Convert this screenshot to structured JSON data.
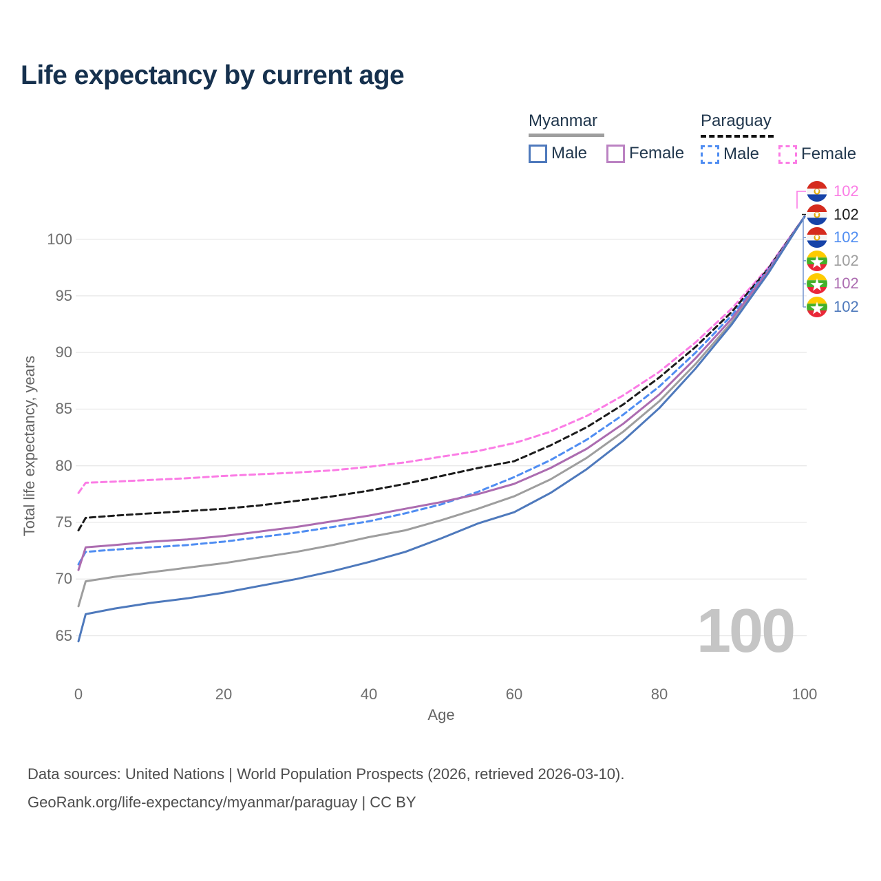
{
  "title": "Life expectancy by current age",
  "legend": {
    "myanmar": {
      "title": "Myanmar",
      "male": "Male",
      "female": "Female"
    },
    "paraguay": {
      "title": "Paraguay",
      "male": "Male",
      "female": "Female"
    }
  },
  "colors": {
    "myanmar_male": "#4e79bc",
    "myanmar_female": "#ac6cb0",
    "myanmar_total": "#9e9e9e",
    "paraguay_male": "#4f8df2",
    "paraguay_female": "#fb7ce5",
    "paraguay_total": "#1c1c1c",
    "grid": "#e9e9e9",
    "tick_text": "#6e6e6e",
    "connector_blue": "#7d9bd2",
    "watermark": "#c5c5c5",
    "title_text": "#16314e"
  },
  "watermark": "100",
  "chart_data": {
    "type": "line",
    "title": "Life expectancy by current age",
    "xlabel": "Age",
    "ylabel": "Total life expectancy, years",
    "xticks": [
      0,
      20,
      40,
      60,
      80,
      100
    ],
    "yticks": [
      65,
      70,
      75,
      80,
      85,
      90,
      95,
      100
    ],
    "xlim": [
      0,
      100
    ],
    "ylim": [
      63.5,
      104
    ],
    "grid": "horizontal",
    "legend_position": "top-right",
    "x": [
      0,
      1,
      5,
      10,
      15,
      20,
      25,
      30,
      35,
      40,
      45,
      50,
      55,
      60,
      65,
      70,
      75,
      80,
      85,
      90,
      95,
      100
    ],
    "series": [
      {
        "name": "Paraguay Female",
        "country": "Paraguay",
        "sex": "Female",
        "style": "dashed",
        "color": "#fb7ce5",
        "values": [
          77.6,
          78.5,
          78.6,
          78.75,
          78.9,
          79.1,
          79.25,
          79.4,
          79.6,
          79.9,
          80.3,
          80.8,
          81.3,
          82.0,
          83.0,
          84.4,
          86.2,
          88.3,
          90.9,
          93.9,
          97.5,
          102
        ]
      },
      {
        "name": "Paraguay Total",
        "country": "Paraguay",
        "sex": "Both",
        "style": "dashed",
        "color": "#1c1c1c",
        "values": [
          74.3,
          75.4,
          75.6,
          75.8,
          76.0,
          76.2,
          76.5,
          76.9,
          77.3,
          77.8,
          78.4,
          79.1,
          79.8,
          80.4,
          81.8,
          83.4,
          85.4,
          87.8,
          90.5,
          93.6,
          97.4,
          102
        ]
      },
      {
        "name": "Paraguay Male",
        "country": "Paraguay",
        "sex": "Male",
        "style": "dashed",
        "color": "#4f8df2",
        "values": [
          71.3,
          72.4,
          72.6,
          72.8,
          73.0,
          73.3,
          73.7,
          74.1,
          74.6,
          75.1,
          75.8,
          76.6,
          77.7,
          79.0,
          80.5,
          82.3,
          84.5,
          87.0,
          90.0,
          93.3,
          97.3,
          102
        ]
      },
      {
        "name": "Myanmar Total",
        "country": "Myanmar",
        "sex": "Both",
        "style": "solid",
        "color": "#9e9e9e",
        "values": [
          67.6,
          69.8,
          70.2,
          70.6,
          71.0,
          71.4,
          71.9,
          72.4,
          73.0,
          73.7,
          74.3,
          75.2,
          76.2,
          77.3,
          78.8,
          80.7,
          83.0,
          85.7,
          89.0,
          92.7,
          97.1,
          102
        ]
      },
      {
        "name": "Myanmar Female",
        "country": "Myanmar",
        "sex": "Female",
        "style": "solid",
        "color": "#ac6cb0",
        "values": [
          70.8,
          72.8,
          73.0,
          73.3,
          73.5,
          73.8,
          74.2,
          74.6,
          75.1,
          75.6,
          76.2,
          76.8,
          77.5,
          78.4,
          79.8,
          81.5,
          83.7,
          86.3,
          89.5,
          93.0,
          97.2,
          102
        ]
      },
      {
        "name": "Myanmar Male",
        "country": "Myanmar",
        "sex": "Male",
        "style": "solid",
        "color": "#4e79bc",
        "values": [
          64.5,
          66.9,
          67.4,
          67.9,
          68.3,
          68.8,
          69.4,
          70.0,
          70.7,
          71.5,
          72.4,
          73.6,
          74.9,
          75.9,
          77.6,
          79.7,
          82.2,
          85.1,
          88.6,
          92.5,
          97.0,
          102
        ]
      }
    ]
  },
  "end_labels": [
    {
      "value": "102",
      "country": "Paraguay",
      "series": "Paraguay Female",
      "color": "#fb7ce5"
    },
    {
      "value": "102",
      "country": "Paraguay",
      "series": "Paraguay Total",
      "color": "#1c1c1c"
    },
    {
      "value": "102",
      "country": "Paraguay",
      "series": "Paraguay Male",
      "color": "#4f8df2"
    },
    {
      "value": "102",
      "country": "Myanmar",
      "series": "Myanmar Total",
      "color": "#9e9e9e"
    },
    {
      "value": "102",
      "country": "Myanmar",
      "series": "Myanmar Female",
      "color": "#ac6cb0"
    },
    {
      "value": "102",
      "country": "Myanmar",
      "series": "Myanmar Male",
      "color": "#4e79bc"
    }
  ],
  "footer": {
    "line1": "Data sources: United Nations | World Population Prospects (2026, retrieved 2026-03-10).",
    "line2": "GeoRank.org/life-expectancy/myanmar/paraguay | CC BY"
  }
}
